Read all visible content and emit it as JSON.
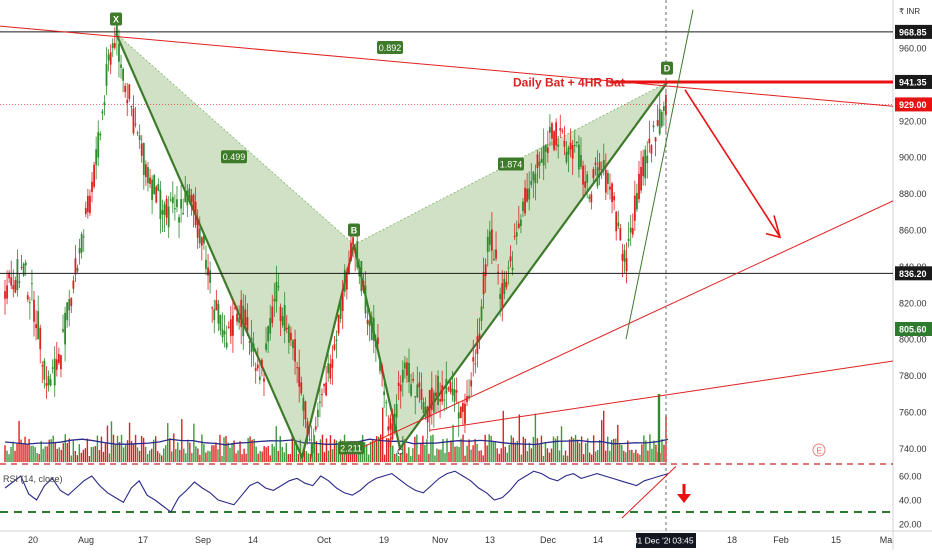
{
  "chart_data": {
    "type": "candlestick",
    "currency": "₹ INR",
    "price_axis": {
      "min": 700,
      "max": 990,
      "ticks": [
        "960.00",
        "940.00",
        "920.00",
        "900.00",
        "880.00",
        "860.00",
        "840.00",
        "820.00",
        "800.00",
        "780.00",
        "760.00",
        "740.00"
      ],
      "tick_values": [
        960,
        940,
        920,
        900,
        880,
        860,
        840,
        820,
        800,
        780,
        760,
        740
      ]
    },
    "price_labels": [
      {
        "text": "968.85",
        "value": 968.85,
        "style": "dark"
      },
      {
        "text": "941.35",
        "value": 941.35,
        "style": "dark"
      },
      {
        "text": "929.00",
        "value": 929.0,
        "style": "red"
      },
      {
        "text": "836.20",
        "value": 836.2,
        "style": "dark"
      },
      {
        "text": "805.60",
        "value": 805.6,
        "style": "green"
      }
    ],
    "rsi_axis": {
      "ticks": [
        "60.00",
        "40.00",
        "20.00"
      ],
      "tick_values": [
        60,
        40,
        20
      ],
      "min": 18,
      "max": 70
    },
    "rsi_label": "RSI (14, close)",
    "x_ticks": [
      "20",
      "Aug",
      "17",
      "Sep",
      "14",
      "Oct",
      "19",
      "Nov",
      "13",
      "Dec",
      "14",
      "18",
      "Feb",
      "15",
      "Ma"
    ],
    "cursor_date": "31 Dec '20",
    "cursor_time": "03:45",
    "annotation": "Daily Bat + 4HR Bat",
    "pattern_points": [
      {
        "label": "X",
        "price": 968
      },
      {
        "label": "B",
        "price": 852
      },
      {
        "label": "D",
        "price": 941
      }
    ],
    "ratios": [
      "0.892",
      "0.499",
      "1.874",
      "2.211"
    ],
    "price_path": [
      {
        "t": 0,
        "p": 830
      },
      {
        "t": 3,
        "p": 838
      },
      {
        "t": 5,
        "p": 815
      },
      {
        "t": 7,
        "p": 775
      },
      {
        "t": 9,
        "p": 790
      },
      {
        "t": 11,
        "p": 830
      },
      {
        "t": 13,
        "p": 860
      },
      {
        "t": 15,
        "p": 900
      },
      {
        "t": 17,
        "p": 955
      },
      {
        "t": 18,
        "p": 968
      },
      {
        "t": 20,
        "p": 935
      },
      {
        "t": 22,
        "p": 905
      },
      {
        "t": 24,
        "p": 885
      },
      {
        "t": 26,
        "p": 868
      },
      {
        "t": 28,
        "p": 872
      },
      {
        "t": 30,
        "p": 878
      },
      {
        "t": 32,
        "p": 858
      },
      {
        "t": 34,
        "p": 820
      },
      {
        "t": 36,
        "p": 795
      },
      {
        "t": 38,
        "p": 818
      },
      {
        "t": 40,
        "p": 800
      },
      {
        "t": 42,
        "p": 780
      },
      {
        "t": 44,
        "p": 825
      },
      {
        "t": 46,
        "p": 810
      },
      {
        "t": 48,
        "p": 780
      },
      {
        "t": 50,
        "p": 742
      },
      {
        "t": 52,
        "p": 770
      },
      {
        "t": 54,
        "p": 805
      },
      {
        "t": 56,
        "p": 842
      },
      {
        "t": 57,
        "p": 852
      },
      {
        "t": 59,
        "p": 818
      },
      {
        "t": 61,
        "p": 790
      },
      {
        "t": 63,
        "p": 745
      },
      {
        "t": 65,
        "p": 785
      },
      {
        "t": 67,
        "p": 770
      },
      {
        "t": 69,
        "p": 762
      },
      {
        "t": 71,
        "p": 775
      },
      {
        "t": 73,
        "p": 770
      },
      {
        "t": 75,
        "p": 758
      },
      {
        "t": 77,
        "p": 800
      },
      {
        "t": 79,
        "p": 858
      },
      {
        "t": 81,
        "p": 825
      },
      {
        "t": 83,
        "p": 850
      },
      {
        "t": 85,
        "p": 880
      },
      {
        "t": 87,
        "p": 895
      },
      {
        "t": 89,
        "p": 915
      },
      {
        "t": 91,
        "p": 905
      },
      {
        "t": 93,
        "p": 905
      },
      {
        "t": 95,
        "p": 880
      },
      {
        "t": 97,
        "p": 895
      },
      {
        "t": 99,
        "p": 878
      },
      {
        "t": 101,
        "p": 840
      },
      {
        "t": 103,
        "p": 880
      },
      {
        "t": 105,
        "p": 905
      },
      {
        "t": 107,
        "p": 925
      },
      {
        "t": 108,
        "p": 935
      }
    ],
    "rsi_values": [
      50,
      55,
      60,
      45,
      40,
      52,
      58,
      48,
      44,
      50,
      56,
      60,
      52,
      46,
      42,
      38,
      50,
      56,
      44,
      40,
      35,
      30,
      42,
      48,
      55,
      50,
      46,
      40,
      38,
      36,
      44,
      52,
      55,
      50,
      48,
      52,
      56,
      58,
      54,
      52,
      60,
      56,
      50,
      46,
      44,
      48,
      54,
      58,
      60,
      62,
      57,
      52,
      48,
      46,
      52,
      58,
      62,
      64,
      60,
      56,
      50,
      46,
      40,
      42,
      48,
      56,
      60,
      64,
      62,
      58,
      56,
      60,
      62,
      58,
      60,
      62,
      60,
      58,
      56,
      54,
      52,
      56,
      58,
      60,
      62
    ],
    "grid": false
  }
}
